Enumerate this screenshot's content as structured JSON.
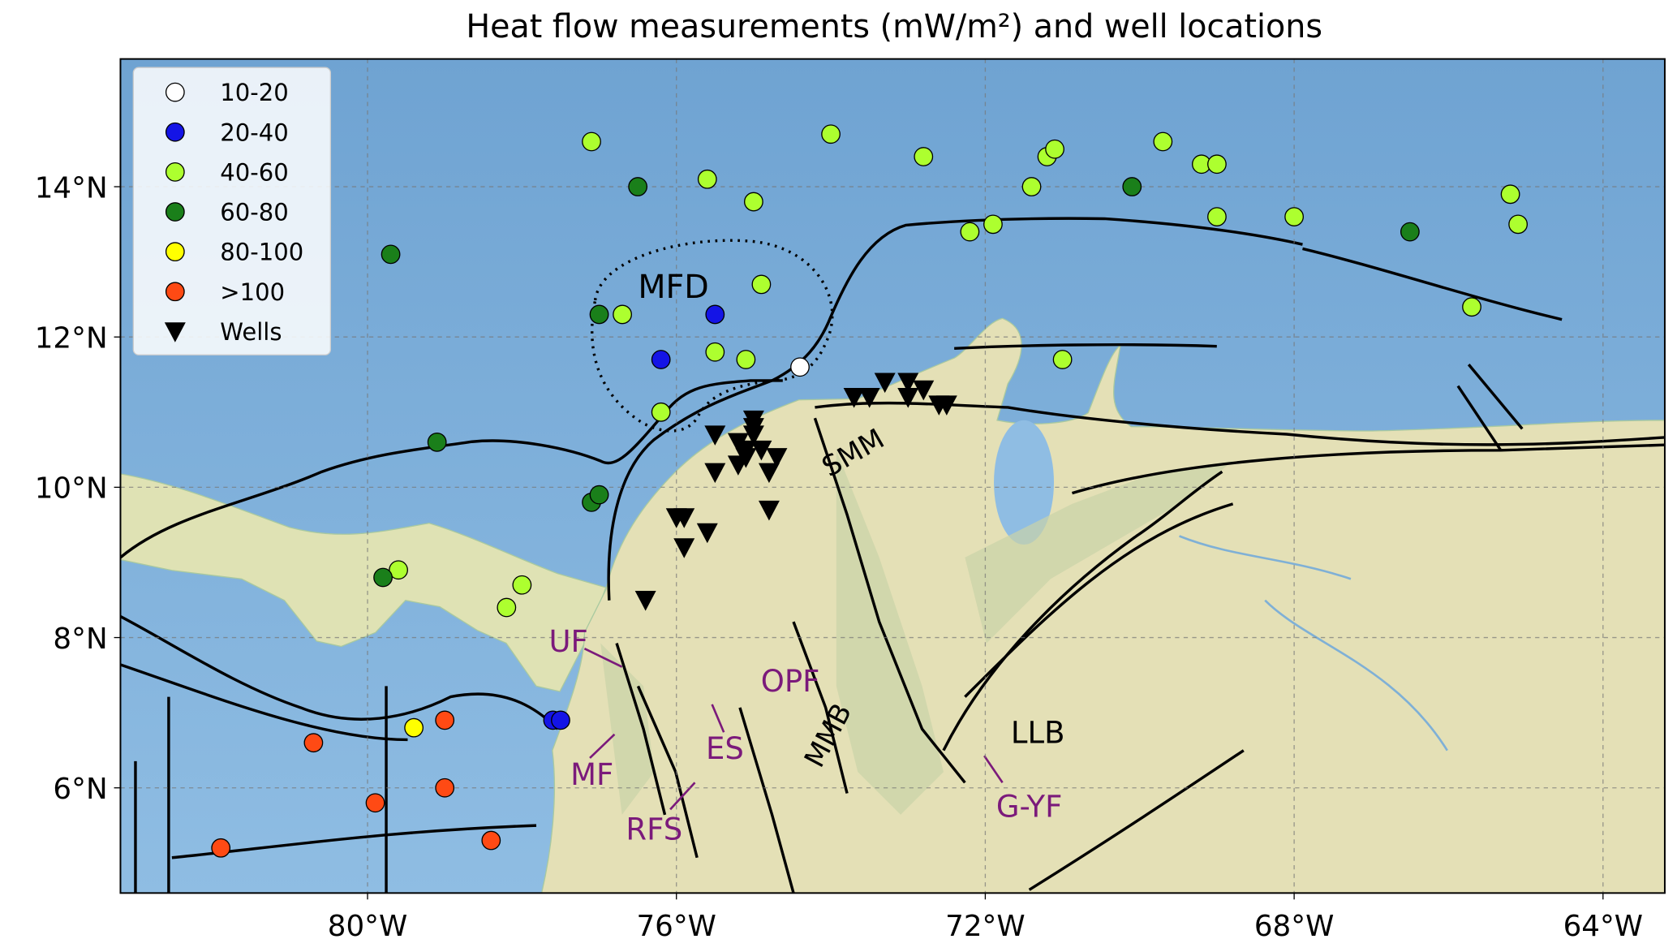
{
  "chart_data": {
    "type": "scatter",
    "title": "Heat flow measurements (mW/m²) and well locations",
    "xlim": [
      -83.2,
      -63.2
    ],
    "ylim": [
      4.6,
      15.7
    ],
    "xticks": [
      {
        "value": -80,
        "label": "80°W"
      },
      {
        "value": -76,
        "label": "76°W"
      },
      {
        "value": -72,
        "label": "72°W"
      },
      {
        "value": -68,
        "label": "68°W"
      },
      {
        "value": -64,
        "label": "64°W"
      }
    ],
    "yticks": [
      {
        "value": 6,
        "label": "6°N"
      },
      {
        "value": 8,
        "label": "8°N"
      },
      {
        "value": 10,
        "label": "10°N"
      },
      {
        "value": 12,
        "label": "12°N"
      },
      {
        "value": 14,
        "label": "14°N"
      }
    ],
    "grid": true,
    "legend": "upper left",
    "series": [
      {
        "name": "10-20",
        "color": "#ffffff",
        "marker": "circle",
        "x": [
          -74.4
        ],
        "y": [
          11.6
        ]
      },
      {
        "name": "20-40",
        "color": "#1414e6",
        "marker": "circle",
        "x": [
          -75.5,
          -76.2,
          -77.6,
          -77.5
        ],
        "y": [
          12.3,
          11.7,
          6.9,
          6.9
        ]
      },
      {
        "name": "40-60",
        "color": "#adff2f",
        "marker": "circle",
        "x": [
          -77.1,
          -75.6,
          -75.0,
          -74.0,
          -72.8,
          -71.2,
          -71.1,
          -71.4,
          -69.7,
          -69.2,
          -69.0,
          -69.0,
          -68.0,
          -65.2,
          -65.1,
          -65.7,
          -72.2,
          -71.9,
          -76.7,
          -74.9,
          -75.5,
          -75.1,
          -76.2,
          -71.0,
          -79.6,
          -78.0,
          -78.2
        ],
        "y": [
          14.6,
          14.1,
          13.8,
          14.7,
          14.4,
          14.4,
          14.5,
          14.0,
          14.6,
          14.3,
          14.3,
          13.6,
          13.6,
          13.9,
          13.5,
          12.4,
          13.4,
          13.5,
          12.3,
          12.7,
          11.8,
          11.7,
          11.0,
          11.7,
          8.9,
          8.7,
          8.4
        ]
      },
      {
        "name": "60-80",
        "color": "#1a7f1a",
        "marker": "circle",
        "x": [
          -76.5,
          -79.7,
          -79.1,
          -77.0,
          -70.1,
          -66.5,
          -77.1,
          -77.0,
          -79.8
        ],
        "y": [
          14.0,
          13.1,
          10.6,
          12.3,
          14.0,
          13.4,
          9.8,
          9.9,
          8.8
        ]
      },
      {
        "name": "80-100",
        "color": "#ffff00",
        "marker": "circle",
        "x": [
          -79.4
        ],
        "y": [
          6.8
        ]
      },
      {
        "name": ">100",
        "color": "#ff4a14",
        "marker": "circle",
        "x": [
          -80.7,
          -79.0,
          -79.9,
          -79.0,
          -78.4,
          -81.9
        ],
        "y": [
          6.6,
          6.9,
          5.8,
          6.0,
          5.3,
          5.2
        ]
      },
      {
        "name": "Wells",
        "color": "#000000",
        "marker": "triangle",
        "x": [
          -76.4,
          -75.9,
          -75.6,
          -76.0,
          -75.9,
          -75.5,
          -75.5,
          -75.2,
          -75.2,
          -75.1,
          -75.1,
          -75.0,
          -75.0,
          -75.0,
          -74.9,
          -74.7,
          -74.8,
          -74.8,
          -73.7,
          -73.5,
          -73.3,
          -73.0,
          -73.0,
          -72.8,
          -72.5,
          -72.6
        ],
        "y": [
          8.5,
          9.2,
          9.4,
          9.6,
          9.6,
          10.2,
          10.7,
          10.3,
          10.6,
          10.5,
          10.4,
          10.9,
          10.8,
          10.7,
          10.5,
          10.4,
          10.2,
          9.7,
          11.2,
          11.2,
          11.4,
          11.4,
          11.2,
          11.3,
          11.1,
          11.1
        ]
      }
    ],
    "annotations": [
      {
        "text": "MFD",
        "color": "#000000"
      },
      {
        "text": "SMM",
        "color": "#000000"
      },
      {
        "text": "MMB",
        "color": "#000000"
      },
      {
        "text": "LLB",
        "color": "#000000"
      },
      {
        "text": "UF",
        "color": "#7b1a7b"
      },
      {
        "text": "MF",
        "color": "#7b1a7b"
      },
      {
        "text": "ES",
        "color": "#7b1a7b"
      },
      {
        "text": "OPF",
        "color": "#7b1a7b"
      },
      {
        "text": "RFS",
        "color": "#7b1a7b"
      },
      {
        "text": "G-YF",
        "color": "#7b1a7b"
      }
    ]
  }
}
